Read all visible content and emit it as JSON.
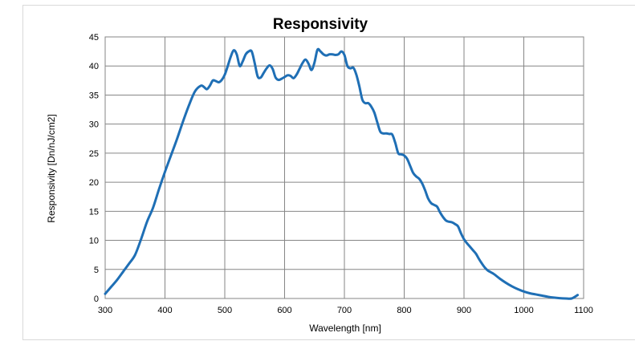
{
  "chart_data": {
    "type": "line",
    "title": "Responsivity",
    "xlabel": "Wavelength [nm]",
    "ylabel": "Responsivity [Dn/nJ/cm2]",
    "xlim": [
      300,
      1100
    ],
    "ylim": [
      0,
      45
    ],
    "x_ticks": [
      300,
      400,
      500,
      600,
      700,
      800,
      900,
      1000,
      1100
    ],
    "y_ticks": [
      0,
      5,
      10,
      15,
      20,
      25,
      30,
      35,
      40,
      45
    ],
    "grid": true,
    "legend": "none",
    "series": [
      {
        "color": "#1f6fb5",
        "x": [
          300,
          310,
          320,
          330,
          340,
          350,
          360,
          370,
          380,
          390,
          400,
          410,
          420,
          430,
          440,
          450,
          460,
          465,
          470,
          475,
          480,
          485,
          490,
          495,
          500,
          505,
          510,
          515,
          520,
          525,
          530,
          535,
          540,
          545,
          550,
          555,
          560,
          565,
          570,
          575,
          580,
          585,
          590,
          595,
          600,
          605,
          610,
          615,
          620,
          625,
          630,
          635,
          640,
          645,
          650,
          655,
          660,
          665,
          670,
          675,
          680,
          685,
          690,
          695,
          700,
          705,
          710,
          715,
          720,
          725,
          730,
          735,
          740,
          745,
          750,
          755,
          760,
          765,
          770,
          775,
          780,
          785,
          790,
          795,
          800,
          805,
          810,
          815,
          820,
          825,
          830,
          835,
          840,
          845,
          850,
          855,
          860,
          865,
          870,
          875,
          880,
          885,
          890,
          895,
          900,
          905,
          910,
          915,
          920,
          925,
          930,
          935,
          940,
          950,
          960,
          970,
          980,
          990,
          1000,
          1010,
          1020,
          1030,
          1040,
          1050,
          1060,
          1070,
          1080,
          1090
        ],
        "y": [
          0.8,
          2.0,
          3.2,
          4.6,
          6.0,
          7.5,
          10.2,
          13.2,
          15.6,
          18.8,
          21.8,
          24.6,
          27.4,
          30.4,
          33.2,
          35.6,
          36.6,
          36.4,
          36.0,
          36.6,
          37.5,
          37.4,
          37.2,
          37.6,
          38.5,
          40.0,
          41.6,
          42.7,
          42.0,
          40.0,
          40.8,
          42.0,
          42.5,
          42.5,
          40.5,
          38.2,
          38.0,
          38.8,
          39.6,
          40.1,
          39.5,
          38.0,
          37.6,
          37.8,
          38.1,
          38.4,
          38.3,
          37.9,
          38.5,
          39.5,
          40.5,
          41.1,
          40.4,
          39.3,
          40.6,
          42.8,
          42.5,
          42.0,
          41.8,
          42.0,
          42.0,
          41.9,
          42.0,
          42.5,
          41.9,
          40.0,
          39.6,
          39.7,
          38.5,
          36.5,
          34.2,
          33.6,
          33.6,
          33.0,
          32.0,
          30.3,
          28.7,
          28.4,
          28.4,
          28.3,
          28.2,
          26.8,
          25.0,
          24.8,
          24.6,
          24.0,
          22.8,
          21.6,
          21.0,
          20.6,
          19.8,
          18.6,
          17.2,
          16.4,
          16.1,
          15.8,
          14.8,
          14.0,
          13.4,
          13.2,
          13.1,
          12.8,
          12.4,
          11.2,
          10.2,
          9.5,
          8.9,
          8.3,
          7.7,
          6.8,
          6.0,
          5.3,
          4.8,
          4.2,
          3.4,
          2.7,
          2.1,
          1.6,
          1.2,
          0.9,
          0.7,
          0.5,
          0.3,
          0.15,
          0.05,
          0.0,
          0.0,
          0.6
        ]
      }
    ]
  }
}
